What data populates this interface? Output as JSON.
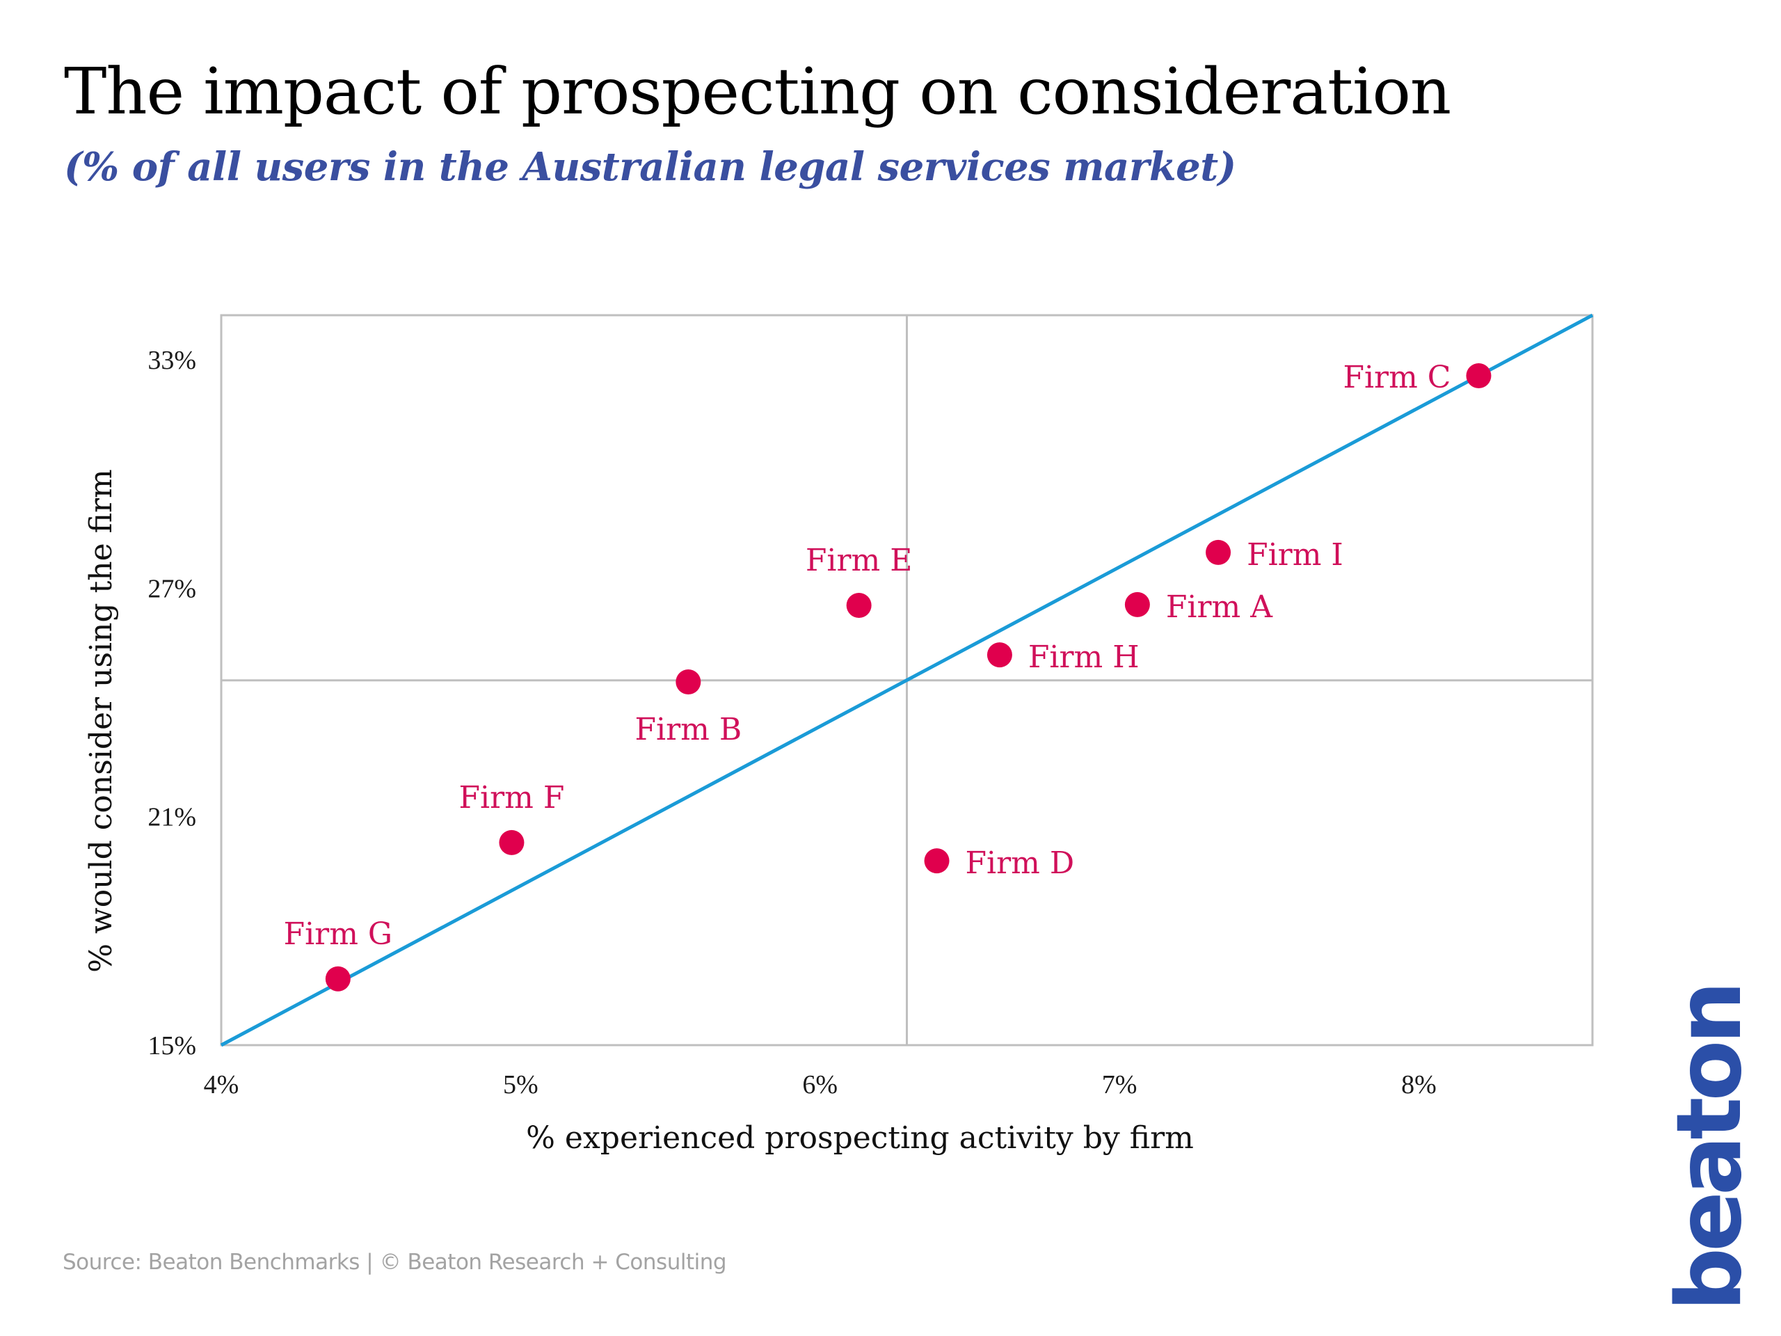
{
  "header": {
    "title": "The impact of prospecting on consideration",
    "subtitle": "(% of all users in the Australian legal services market)"
  },
  "footer": {
    "source": "Source: Beaton Benchmarks | © Beaton Research + Consulting"
  },
  "logo": {
    "text": "beaton",
    "color": "#2B4FA8"
  },
  "colors": {
    "point": "#E0004D",
    "point_label": "#D0105A",
    "trend_line": "#1A9BD7",
    "grid": "#BFBFBF",
    "subtitle": "#3A4FA0",
    "footer": "#A3A3A3"
  },
  "chart_data": {
    "type": "scatter",
    "title": "The impact of prospecting on consideration",
    "subtitle": "(% of all users in the Australian legal services market)",
    "xlabel": "% experienced prospecting activity by firm",
    "ylabel": "% would consider using the firm",
    "xlim": [
      4,
      8.58
    ],
    "ylim": [
      15,
      34.17
    ],
    "x_ticks": [
      4,
      5,
      6,
      7,
      8
    ],
    "x_tick_labels": [
      "4%",
      "5%",
      "6%",
      "7%",
      "8%"
    ],
    "y_ticks": [
      15,
      21,
      27,
      33
    ],
    "y_tick_labels": [
      "15%",
      "21%",
      "27%",
      "33%"
    ],
    "grid": false,
    "quadrant_lines": {
      "x": 6.29,
      "y": 24.58
    },
    "trend_line": {
      "from": [
        4,
        15
      ],
      "to": [
        8.58,
        34.17
      ]
    },
    "points": [
      {
        "label": "Firm A",
        "x": 7.06,
        "y": 26.57,
        "label_position": "right"
      },
      {
        "label": "Firm B",
        "x": 5.56,
        "y": 24.54,
        "label_position": "below"
      },
      {
        "label": "Firm C",
        "x": 8.2,
        "y": 32.58,
        "label_position": "left"
      },
      {
        "label": "Firm D",
        "x": 6.39,
        "y": 19.84,
        "label_position": "right"
      },
      {
        "label": "Firm E",
        "x": 6.13,
        "y": 26.55,
        "label_position": "above"
      },
      {
        "label": "Firm F",
        "x": 4.97,
        "y": 20.32,
        "label_position": "above"
      },
      {
        "label": "Firm G",
        "x": 4.39,
        "y": 16.74,
        "label_position": "above"
      },
      {
        "label": "Firm H",
        "x": 6.6,
        "y": 25.25,
        "label_position": "right"
      },
      {
        "label": "Firm I",
        "x": 7.33,
        "y": 27.94,
        "label_position": "right"
      }
    ]
  }
}
